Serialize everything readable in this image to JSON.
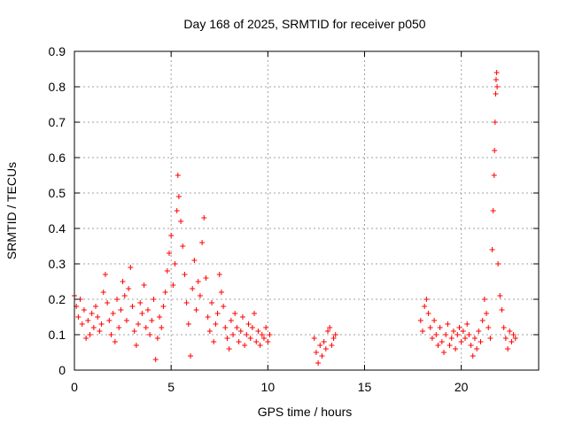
{
  "chart_data": {
    "type": "scatter",
    "title": "Day 168 of 2025, SRMTID for receiver p050",
    "xlabel": "GPS time / hours",
    "ylabel": "SRMTID / TECUs",
    "xlim": [
      0,
      24
    ],
    "ylim": [
      0,
      0.9
    ],
    "xticks": [
      0,
      5,
      10,
      15,
      20
    ],
    "xtick_labels": [
      "0",
      "5",
      "10",
      "15",
      "20"
    ],
    "yticks": [
      0,
      0.1,
      0.2,
      0.3,
      0.4,
      0.5,
      0.6,
      0.7,
      0.8,
      0.9
    ],
    "ytick_labels": [
      "0",
      "0.1",
      "0.2",
      "0.3",
      "0.4",
      "0.5",
      "0.6",
      "0.7",
      "0.8",
      "0.9"
    ],
    "grid": true,
    "marker": "+",
    "series": [
      {
        "name": "p050",
        "color": "#ff0000",
        "points": [
          [
            0.0,
            0.21
          ],
          [
            0.1,
            0.18
          ],
          [
            0.2,
            0.15
          ],
          [
            0.3,
            0.2
          ],
          [
            0.4,
            0.13
          ],
          [
            0.5,
            0.17
          ],
          [
            0.6,
            0.09
          ],
          [
            0.7,
            0.14
          ],
          [
            0.8,
            0.1
          ],
          [
            0.9,
            0.16
          ],
          [
            1.0,
            0.12
          ],
          [
            1.1,
            0.18
          ],
          [
            1.2,
            0.15
          ],
          [
            1.3,
            0.11
          ],
          [
            1.4,
            0.13
          ],
          [
            1.5,
            0.22
          ],
          [
            1.6,
            0.27
          ],
          [
            1.7,
            0.19
          ],
          [
            1.8,
            0.14
          ],
          [
            1.9,
            0.1
          ],
          [
            2.0,
            0.16
          ],
          [
            2.1,
            0.08
          ],
          [
            2.2,
            0.2
          ],
          [
            2.3,
            0.12
          ],
          [
            2.4,
            0.17
          ],
          [
            2.5,
            0.25
          ],
          [
            2.6,
            0.21
          ],
          [
            2.7,
            0.14
          ],
          [
            2.8,
            0.23
          ],
          [
            2.9,
            0.29
          ],
          [
            3.0,
            0.18
          ],
          [
            3.1,
            0.11
          ],
          [
            3.2,
            0.07
          ],
          [
            3.3,
            0.13
          ],
          [
            3.4,
            0.19
          ],
          [
            3.5,
            0.16
          ],
          [
            3.6,
            0.24
          ],
          [
            3.7,
            0.12
          ],
          [
            3.8,
            0.17
          ],
          [
            3.9,
            0.1
          ],
          [
            4.0,
            0.14
          ],
          [
            4.1,
            0.2
          ],
          [
            4.2,
            0.03
          ],
          [
            4.3,
            0.09
          ],
          [
            4.4,
            0.15
          ],
          [
            4.5,
            0.12
          ],
          [
            4.6,
            0.18
          ],
          [
            4.7,
            0.22
          ],
          [
            4.8,
            0.28
          ],
          [
            4.9,
            0.33
          ],
          [
            5.0,
            0.38
          ],
          [
            5.1,
            0.24
          ],
          [
            5.2,
            0.3
          ],
          [
            5.3,
            0.45
          ],
          [
            5.35,
            0.55
          ],
          [
            5.4,
            0.49
          ],
          [
            5.5,
            0.42
          ],
          [
            5.6,
            0.35
          ],
          [
            5.7,
            0.27
          ],
          [
            5.8,
            0.19
          ],
          [
            5.9,
            0.13
          ],
          [
            6.0,
            0.04
          ],
          [
            6.1,
            0.23
          ],
          [
            6.2,
            0.31
          ],
          [
            6.3,
            0.17
          ],
          [
            6.4,
            0.25
          ],
          [
            6.5,
            0.21
          ],
          [
            6.6,
            0.36
          ],
          [
            6.7,
            0.43
          ],
          [
            6.8,
            0.26
          ],
          [
            6.9,
            0.15
          ],
          [
            7.0,
            0.11
          ],
          [
            7.1,
            0.19
          ],
          [
            7.2,
            0.08
          ],
          [
            7.3,
            0.13
          ],
          [
            7.4,
            0.16
          ],
          [
            7.5,
            0.27
          ],
          [
            7.6,
            0.22
          ],
          [
            7.7,
            0.18
          ],
          [
            7.8,
            0.12
          ],
          [
            7.9,
            0.09
          ],
          [
            8.0,
            0.06
          ],
          [
            8.1,
            0.14
          ],
          [
            8.2,
            0.1
          ],
          [
            8.3,
            0.16
          ],
          [
            8.4,
            0.12
          ],
          [
            8.5,
            0.08
          ],
          [
            8.6,
            0.11
          ],
          [
            8.7,
            0.15
          ],
          [
            8.8,
            0.07
          ],
          [
            8.9,
            0.1
          ],
          [
            9.0,
            0.13
          ],
          [
            9.1,
            0.09
          ],
          [
            9.2,
            0.12
          ],
          [
            9.3,
            0.16
          ],
          [
            9.4,
            0.08
          ],
          [
            9.5,
            0.11
          ],
          [
            9.6,
            0.07
          ],
          [
            9.7,
            0.1
          ],
          [
            9.8,
            0.09
          ],
          [
            9.9,
            0.12
          ],
          [
            10.0,
            0.08
          ],
          [
            10.1,
            0.1
          ],
          [
            12.4,
            0.09
          ],
          [
            12.5,
            0.05
          ],
          [
            12.6,
            0.02
          ],
          [
            12.7,
            0.07
          ],
          [
            12.8,
            0.04
          ],
          [
            12.9,
            0.08
          ],
          [
            13.0,
            0.06
          ],
          [
            13.1,
            0.11
          ],
          [
            13.2,
            0.12
          ],
          [
            13.3,
            0.07
          ],
          [
            13.4,
            0.09
          ],
          [
            13.5,
            0.1
          ],
          [
            17.9,
            0.14
          ],
          [
            18.0,
            0.11
          ],
          [
            18.1,
            0.18
          ],
          [
            18.2,
            0.2
          ],
          [
            18.3,
            0.16
          ],
          [
            18.4,
            0.12
          ],
          [
            18.5,
            0.09
          ],
          [
            18.6,
            0.14
          ],
          [
            18.7,
            0.1
          ],
          [
            18.8,
            0.07
          ],
          [
            18.9,
            0.12
          ],
          [
            19.0,
            0.08
          ],
          [
            19.1,
            0.05
          ],
          [
            19.2,
            0.1
          ],
          [
            19.3,
            0.13
          ],
          [
            19.4,
            0.07
          ],
          [
            19.5,
            0.09
          ],
          [
            19.6,
            0.11
          ],
          [
            19.7,
            0.06
          ],
          [
            19.8,
            0.1
          ],
          [
            19.9,
            0.12
          ],
          [
            20.0,
            0.08
          ],
          [
            20.1,
            0.11
          ],
          [
            20.2,
            0.09
          ],
          [
            20.3,
            0.13
          ],
          [
            20.4,
            0.1
          ],
          [
            20.5,
            0.07
          ],
          [
            20.6,
            0.04
          ],
          [
            20.7,
            0.09
          ],
          [
            20.8,
            0.06
          ],
          [
            20.9,
            0.11
          ],
          [
            21.0,
            0.08
          ],
          [
            21.1,
            0.14
          ],
          [
            21.2,
            0.2
          ],
          [
            21.3,
            0.16
          ],
          [
            21.4,
            0.12
          ],
          [
            21.5,
            0.09
          ],
          [
            21.6,
            0.34
          ],
          [
            21.65,
            0.45
          ],
          [
            21.7,
            0.55
          ],
          [
            21.72,
            0.62
          ],
          [
            21.75,
            0.7
          ],
          [
            21.78,
            0.78
          ],
          [
            21.8,
            0.82
          ],
          [
            21.83,
            0.84
          ],
          [
            21.85,
            0.8
          ],
          [
            21.9,
            0.3
          ],
          [
            22.0,
            0.21
          ],
          [
            22.1,
            0.17
          ],
          [
            22.2,
            0.12
          ],
          [
            22.3,
            0.09
          ],
          [
            22.4,
            0.06
          ],
          [
            22.5,
            0.11
          ],
          [
            22.6,
            0.08
          ],
          [
            22.7,
            0.1
          ],
          [
            22.8,
            0.09
          ]
        ]
      }
    ]
  }
}
